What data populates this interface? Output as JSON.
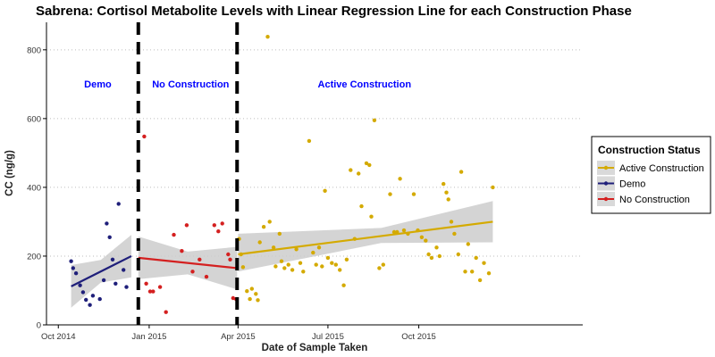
{
  "chart_data": {
    "type": "scatter",
    "title": "Sabrena: Cortisol Metabolite Levels with Linear Regression Line for each Construction Phase",
    "xlabel": "Date of Sample Taken",
    "ylabel": "CC (ng/g)",
    "xlim": [
      "2014-09-19",
      "2016-03-15"
    ],
    "ylim": [
      0,
      880
    ],
    "x_ticks": [
      {
        "date": "2014-10-01",
        "label": "Oct 2014"
      },
      {
        "date": "2015-01-01",
        "label": "Jan 2015"
      },
      {
        "date": "2015-04-01",
        "label": "Apr 2015"
      },
      {
        "date": "2015-07-01",
        "label": "Jul 2015"
      },
      {
        "date": "2015-10-01",
        "label": "Oct 2015"
      }
    ],
    "y_ticks": [
      0,
      200,
      400,
      600,
      800
    ],
    "grid": "dotted horizontal",
    "phase_dividers": [
      "2014-12-21",
      "2015-03-31"
    ],
    "phase_labels": [
      {
        "text": "Demo",
        "date": "2014-11-10",
        "y": 690
      },
      {
        "text": "No Construction",
        "date": "2015-02-12",
        "y": 690
      },
      {
        "text": "Active Construction",
        "date": "2015-08-07",
        "y": 690
      }
    ],
    "legend": {
      "title": "Construction Status",
      "position": "right",
      "entries": [
        "Active Construction",
        "Demo",
        "No Construction"
      ]
    },
    "series": [
      {
        "name": "Demo",
        "color": "#1f1f7a",
        "points": [
          [
            "2014-10-14",
            185
          ],
          [
            "2014-10-16",
            165
          ],
          [
            "2014-10-19",
            150
          ],
          [
            "2014-10-23",
            115
          ],
          [
            "2014-10-26",
            95
          ],
          [
            "2014-10-29",
            73
          ],
          [
            "2014-11-02",
            58
          ],
          [
            "2014-11-05",
            85
          ],
          [
            "2014-11-12",
            75
          ],
          [
            "2014-11-16",
            130
          ],
          [
            "2014-11-19",
            295
          ],
          [
            "2014-11-22",
            255
          ],
          [
            "2014-11-25",
            190
          ],
          [
            "2014-11-28",
            120
          ],
          [
            "2014-12-01",
            352
          ],
          [
            "2014-12-06",
            160
          ],
          [
            "2014-12-09",
            110
          ]
        ],
        "regression": [
          [
            "2014-10-14",
            112
          ],
          [
            "2014-12-14",
            200
          ]
        ]
      },
      {
        "name": "No Construction",
        "color": "#d42020",
        "points": [
          [
            "2014-12-27",
            548
          ],
          [
            "2014-12-29",
            120
          ],
          [
            "2015-01-02",
            97
          ],
          [
            "2015-01-05",
            97
          ],
          [
            "2015-01-12",
            110
          ],
          [
            "2015-01-18",
            37
          ],
          [
            "2015-01-26",
            262
          ],
          [
            "2015-02-03",
            215
          ],
          [
            "2015-02-08",
            290
          ],
          [
            "2015-02-14",
            155
          ],
          [
            "2015-02-21",
            190
          ],
          [
            "2015-02-28",
            140
          ],
          [
            "2015-03-08",
            290
          ],
          [
            "2015-03-12",
            272
          ],
          [
            "2015-03-16",
            295
          ],
          [
            "2015-03-22",
            205
          ],
          [
            "2015-03-24",
            190
          ],
          [
            "2015-03-27",
            78
          ],
          [
            "2015-03-30",
            75
          ]
        ],
        "regression": [
          [
            "2014-12-21",
            195
          ],
          [
            "2015-03-31",
            165
          ]
        ]
      },
      {
        "name": "Active Construction",
        "color": "#d4aa00",
        "points": [
          [
            "2015-04-02",
            250
          ],
          [
            "2015-04-04",
            205
          ],
          [
            "2015-04-06",
            168
          ],
          [
            "2015-04-10",
            98
          ],
          [
            "2015-04-13",
            75
          ],
          [
            "2015-04-15",
            105
          ],
          [
            "2015-04-19",
            90
          ],
          [
            "2015-04-21",
            72
          ],
          [
            "2015-04-23",
            240
          ],
          [
            "2015-04-27",
            285
          ],
          [
            "2015-05-01",
            838
          ],
          [
            "2015-05-03",
            300
          ],
          [
            "2015-05-07",
            225
          ],
          [
            "2015-05-09",
            170
          ],
          [
            "2015-05-13",
            265
          ],
          [
            "2015-05-15",
            185
          ],
          [
            "2015-05-18",
            165
          ],
          [
            "2015-05-22",
            175
          ],
          [
            "2015-05-26",
            160
          ],
          [
            "2015-05-30",
            220
          ],
          [
            "2015-06-03",
            180
          ],
          [
            "2015-06-06",
            155
          ],
          [
            "2015-06-12",
            535
          ],
          [
            "2015-06-16",
            210
          ],
          [
            "2015-06-19",
            175
          ],
          [
            "2015-06-22",
            225
          ],
          [
            "2015-06-25",
            170
          ],
          [
            "2015-06-28",
            390
          ],
          [
            "2015-07-01",
            195
          ],
          [
            "2015-07-05",
            180
          ],
          [
            "2015-07-09",
            175
          ],
          [
            "2015-07-13",
            160
          ],
          [
            "2015-07-17",
            115
          ],
          [
            "2015-07-20",
            190
          ],
          [
            "2015-07-24",
            450
          ],
          [
            "2015-07-28",
            250
          ],
          [
            "2015-08-01",
            440
          ],
          [
            "2015-08-04",
            345
          ],
          [
            "2015-08-09",
            470
          ],
          [
            "2015-08-12",
            465
          ],
          [
            "2015-08-14",
            315
          ],
          [
            "2015-08-17",
            595
          ],
          [
            "2015-08-22",
            165
          ],
          [
            "2015-08-26",
            175
          ],
          [
            "2015-09-02",
            380
          ],
          [
            "2015-09-06",
            270
          ],
          [
            "2015-09-09",
            270
          ],
          [
            "2015-09-12",
            425
          ],
          [
            "2015-09-16",
            275
          ],
          [
            "2015-09-20",
            265
          ],
          [
            "2015-09-26",
            380
          ],
          [
            "2015-09-30",
            275
          ],
          [
            "2015-10-04",
            255
          ],
          [
            "2015-10-08",
            245
          ],
          [
            "2015-10-11",
            205
          ],
          [
            "2015-10-14",
            195
          ],
          [
            "2015-10-19",
            225
          ],
          [
            "2015-10-22",
            200
          ],
          [
            "2015-10-26",
            410
          ],
          [
            "2015-10-29",
            385
          ],
          [
            "2015-10-31",
            365
          ],
          [
            "2015-11-03",
            300
          ],
          [
            "2015-11-06",
            265
          ],
          [
            "2015-11-10",
            205
          ],
          [
            "2015-11-13",
            445
          ],
          [
            "2015-11-17",
            155
          ],
          [
            "2015-11-20",
            235
          ],
          [
            "2015-11-24",
            155
          ],
          [
            "2015-11-28",
            195
          ],
          [
            "2015-12-02",
            130
          ],
          [
            "2015-12-06",
            180
          ],
          [
            "2015-12-11",
            150
          ],
          [
            "2015-12-15",
            400
          ]
        ],
        "regression": [
          [
            "2015-04-01",
            205
          ],
          [
            "2015-12-15",
            300
          ]
        ],
        "band_top": [
          [
            "2015-04-01",
            265
          ],
          [
            "2015-08-24",
            282
          ],
          [
            "2015-12-15",
            360
          ]
        ],
        "band_bottom": [
          [
            "2015-04-01",
            155
          ],
          [
            "2015-08-24",
            238
          ],
          [
            "2015-12-15",
            240
          ]
        ]
      }
    ]
  }
}
